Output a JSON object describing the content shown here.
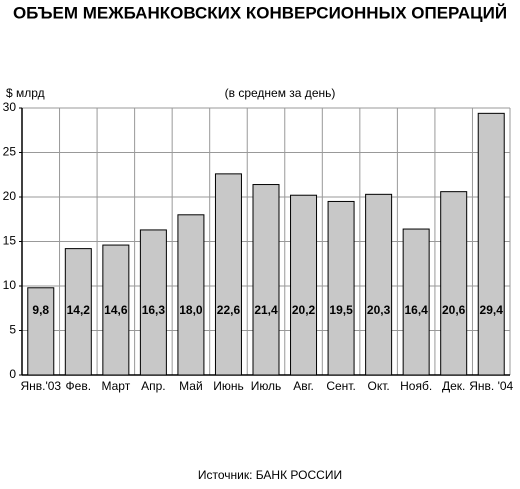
{
  "chart_data": {
    "type": "bar",
    "title": "ОБЪЕМ МЕЖБАНКОВСКИХ КОНВЕРСИОННЫХ ОПЕРАЦИЙ",
    "subtitle": "(в среднем за день)",
    "y_label": "$ млрд",
    "source": "Источник: БАНК РОССИИ",
    "categories": [
      "Янв.'03",
      "Фев.",
      "Март",
      "Апр.",
      "Май",
      "Июнь",
      "Июль",
      "Авг.",
      "Сент.",
      "Окт.",
      "Нояб.",
      "Дек.",
      "Янв. '04"
    ],
    "values": [
      9.8,
      14.2,
      14.6,
      16.3,
      18.0,
      22.6,
      21.4,
      20.2,
      19.5,
      20.3,
      16.4,
      20.6,
      29.4
    ],
    "value_labels": [
      "9,8",
      "14,2",
      "14,6",
      "16,3",
      "18,0",
      "22,6",
      "21,4",
      "20,2",
      "19,5",
      "20,3",
      "16,4",
      "20,6",
      "29,4"
    ],
    "color": "#c8c8c8",
    "ylim": [
      0,
      30
    ],
    "yticks": [
      0,
      5,
      10,
      15,
      20,
      25,
      30
    ],
    "grid": true
  }
}
